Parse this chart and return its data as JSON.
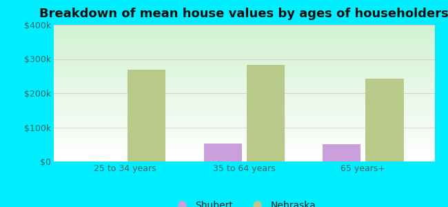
{
  "title": "Breakdown of mean house values by ages of householders",
  "categories": [
    "25 to 34 years",
    "35 to 64 years",
    "65 years+"
  ],
  "shubert_values": [
    0,
    52000,
    50000
  ],
  "nebraska_values": [
    268000,
    283000,
    243000
  ],
  "shubert_color": "#c9a0dc",
  "nebraska_color": "#b8c98a",
  "ylim": [
    0,
    400000
  ],
  "yticks": [
    0,
    100000,
    200000,
    300000,
    400000
  ],
  "ytick_labels": [
    "$0",
    "$100k",
    "$200k",
    "$300k",
    "$400k"
  ],
  "background_color": "#00eeff",
  "bar_width": 0.32,
  "legend_labels": [
    "Shubert",
    "Nebraska"
  ],
  "title_fontsize": 13,
  "tick_fontsize": 9,
  "legend_fontsize": 10,
  "grid_color": "#ddaaaa",
  "grid_alpha": 0.5
}
